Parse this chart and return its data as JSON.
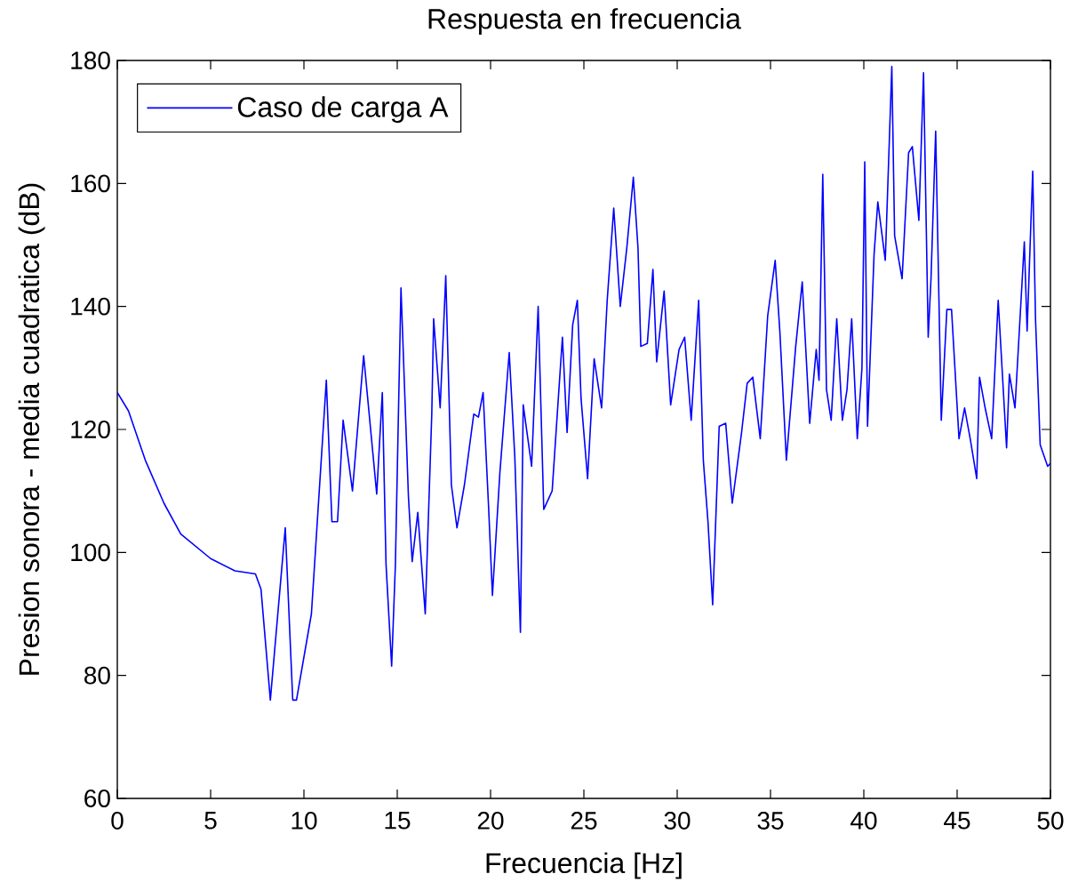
{
  "chart_data": {
    "type": "line",
    "title": "Respuesta en frecuencia",
    "xlabel": "Frecuencia [Hz]",
    "ylabel": "Presion sonora - media cuadratica (dB)",
    "x": [
      0,
      0.6,
      1.5,
      2.5,
      3.4,
      5.0,
      6.3,
      7.4,
      7.7,
      8.2,
      9.0,
      9.4,
      9.6,
      10.4,
      11.2,
      11.5,
      11.8,
      12.1,
      12.6,
      13.2,
      13.9,
      14.2,
      14.4,
      14.7,
      14.9,
      15.2,
      15.6,
      15.8,
      16.1,
      16.5,
      16.85,
      16.95,
      17.3,
      17.6,
      17.9,
      18.2,
      18.6,
      19.1,
      19.35,
      19.6,
      19.9,
      20.1,
      20.5,
      21.0,
      21.3,
      21.6,
      21.75,
      22.2,
      22.55,
      22.85,
      23.3,
      23.85,
      24.1,
      24.4,
      24.65,
      24.85,
      25.2,
      25.55,
      25.95,
      26.25,
      26.6,
      26.95,
      27.3,
      27.65,
      27.9,
      28.05,
      28.4,
      28.7,
      28.9,
      29.3,
      29.65,
      30.1,
      30.4,
      30.75,
      31.15,
      31.4,
      31.65,
      31.9,
      32.25,
      32.6,
      32.95,
      33.45,
      33.75,
      34.05,
      34.45,
      34.85,
      35.25,
      35.5,
      35.85,
      36.35,
      36.7,
      37.1,
      37.45,
      37.6,
      37.8,
      38.0,
      38.25,
      38.55,
      38.85,
      39.1,
      39.35,
      39.65,
      39.9,
      40.05,
      40.2,
      40.55,
      40.75,
      41.15,
      41.5,
      41.65,
      42.05,
      42.4,
      42.6,
      42.95,
      43.2,
      43.45,
      43.6,
      43.85,
      44.15,
      44.45,
      44.7,
      45.1,
      45.4,
      45.7,
      46.05,
      46.2,
      46.5,
      46.85,
      47.2,
      47.65,
      47.8,
      48.1,
      48.6,
      48.75,
      49.05,
      49.2,
      49.45,
      49.85,
      50
    ],
    "series": [
      {
        "name": "Caso de carga A",
        "color": "#0000ff",
        "values": [
          126,
          123,
          115,
          108,
          103,
          99,
          97,
          96.5,
          94,
          76,
          104,
          76,
          76,
          90,
          128,
          105,
          105,
          121.5,
          110,
          132,
          109.5,
          126,
          98,
          81.5,
          98,
          143,
          109,
          98.5,
          106.5,
          90,
          122.5,
          138,
          123.5,
          145,
          111,
          104,
          111,
          122.5,
          122,
          126,
          107,
          93,
          113,
          132.5,
          115.5,
          87,
          124,
          114,
          140,
          107,
          110,
          135,
          119.5,
          137,
          141,
          125,
          112,
          131.5,
          123.5,
          141,
          156,
          140,
          149.5,
          161,
          149.5,
          133.5,
          134,
          146,
          131,
          142.5,
          124,
          133,
          135,
          121.5,
          141,
          115,
          105,
          91.5,
          120.5,
          121,
          108,
          119.5,
          127.5,
          128.5,
          118.5,
          138.5,
          147.5,
          136,
          115,
          133.5,
          144,
          121,
          133,
          128,
          161.5,
          126.5,
          121.5,
          138,
          121.5,
          126.5,
          138,
          118.5,
          130,
          163.5,
          120.5,
          148.5,
          157,
          147.5,
          179,
          151.5,
          144.5,
          165,
          166,
          154,
          178,
          135,
          144.5,
          168.5,
          121.5,
          139.5,
          139.5,
          118.5,
          123.5,
          118.5,
          112,
          128.5,
          123.5,
          118.5,
          141,
          117,
          129,
          123.5,
          150.5,
          136,
          162,
          138,
          117.5,
          114,
          114.5
        ]
      }
    ],
    "xlim": [
      0,
      50
    ],
    "ylim": [
      60,
      180
    ],
    "xticks": [
      0,
      5,
      10,
      15,
      20,
      25,
      30,
      35,
      40,
      45,
      50
    ],
    "yticks": [
      60,
      80,
      100,
      120,
      140,
      160,
      180
    ],
    "legend": "top left",
    "line_style": "solid"
  }
}
